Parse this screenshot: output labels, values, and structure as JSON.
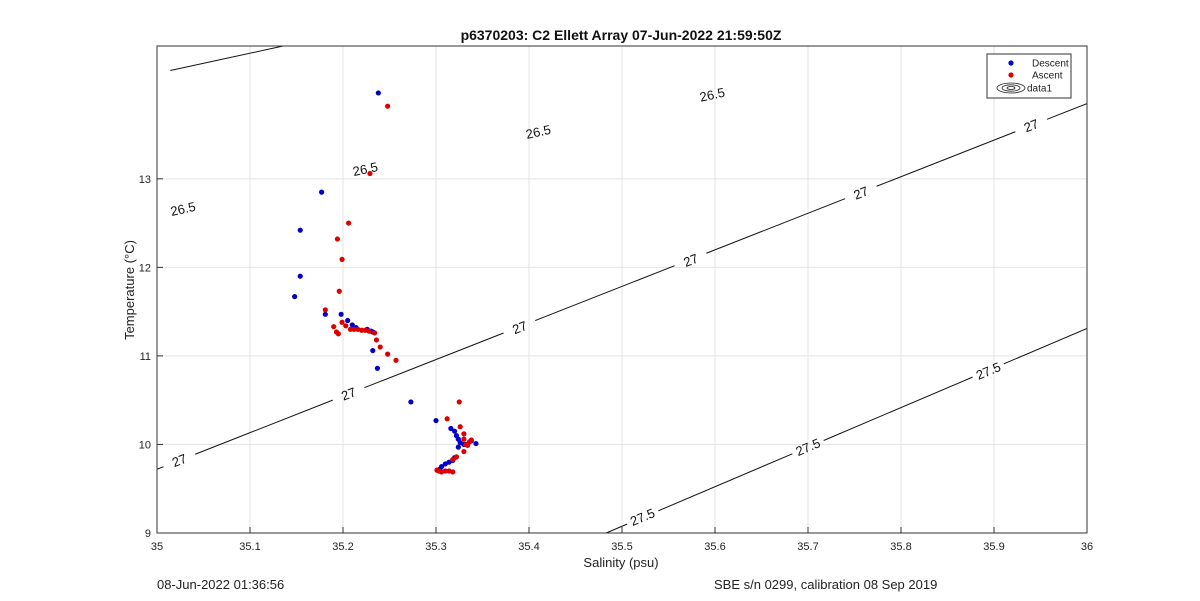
{
  "chart_data": {
    "type": "scatter",
    "title": "p6370203: C2 Ellett Array 07-Jun-2022 21:59:50Z",
    "xlabel": "Salinity (psu)",
    "ylabel": "Temperature (°C)",
    "xlim": [
      35,
      36
    ],
    "ylim": [
      9,
      14.5
    ],
    "xticks": [
      "35",
      "35.1",
      "35.2",
      "35.3",
      "35.4",
      "35.5",
      "35.6",
      "35.7",
      "35.8",
      "35.9",
      "36"
    ],
    "yticks": [
      "9",
      "10",
      "11",
      "12",
      "13"
    ],
    "grid": true,
    "legend_position": "top-right",
    "legend": [
      "Descent",
      "Ascent",
      "data1"
    ],
    "series": [
      {
        "name": "Descent",
        "color": "#0000cc",
        "points": [
          [
            35.238,
            13.97
          ],
          [
            35.177,
            12.85
          ],
          [
            35.154,
            12.42
          ],
          [
            35.154,
            11.9
          ],
          [
            35.148,
            11.67
          ],
          [
            35.181,
            11.47
          ],
          [
            35.198,
            11.47
          ],
          [
            35.205,
            11.4
          ],
          [
            35.21,
            11.35
          ],
          [
            35.214,
            11.32
          ],
          [
            35.226,
            11.3
          ],
          [
            35.23,
            11.28
          ],
          [
            35.232,
            11.27
          ],
          [
            35.232,
            11.06
          ],
          [
            35.237,
            10.86
          ],
          [
            35.273,
            10.48
          ],
          [
            35.3,
            10.27
          ],
          [
            35.316,
            10.18
          ],
          [
            35.32,
            10.15
          ],
          [
            35.322,
            10.1
          ],
          [
            35.324,
            10.06
          ],
          [
            35.326,
            10.02
          ],
          [
            35.33,
            10.0
          ],
          [
            35.334,
            10.0
          ],
          [
            35.343,
            10.01
          ],
          [
            35.338,
            10.04
          ],
          [
            35.324,
            9.97
          ],
          [
            35.32,
            9.85
          ],
          [
            35.318,
            9.82
          ],
          [
            35.314,
            9.8
          ],
          [
            35.31,
            9.78
          ],
          [
            35.306,
            9.75
          ],
          [
            35.304,
            9.72
          ]
        ]
      },
      {
        "name": "Ascent",
        "color": "#dd0000",
        "points": [
          [
            35.248,
            13.82
          ],
          [
            35.229,
            13.06
          ],
          [
            35.206,
            12.5
          ],
          [
            35.194,
            12.32
          ],
          [
            35.199,
            12.09
          ],
          [
            35.196,
            11.73
          ],
          [
            35.181,
            11.52
          ],
          [
            35.19,
            11.33
          ],
          [
            35.193,
            11.27
          ],
          [
            35.195,
            11.25
          ],
          [
            35.199,
            11.38
          ],
          [
            35.203,
            11.34
          ],
          [
            35.208,
            11.3
          ],
          [
            35.212,
            11.3
          ],
          [
            35.216,
            11.3
          ],
          [
            35.22,
            11.29
          ],
          [
            35.224,
            11.29
          ],
          [
            35.228,
            11.28
          ],
          [
            35.234,
            11.26
          ],
          [
            35.236,
            11.18
          ],
          [
            35.24,
            11.1
          ],
          [
            35.248,
            11.02
          ],
          [
            35.257,
            10.95
          ],
          [
            35.325,
            10.48
          ],
          [
            35.312,
            10.29
          ],
          [
            35.326,
            10.2
          ],
          [
            35.33,
            10.12
          ],
          [
            35.33,
            10.06
          ],
          [
            35.332,
            10.0
          ],
          [
            35.336,
            10.03
          ],
          [
            35.338,
            10.05
          ],
          [
            35.334,
            9.99
          ],
          [
            35.33,
            9.92
          ],
          [
            35.322,
            9.86
          ],
          [
            35.318,
            9.83
          ],
          [
            35.314,
            9.7
          ],
          [
            35.31,
            9.7
          ],
          [
            35.306,
            9.69
          ],
          [
            35.303,
            9.7
          ],
          [
            35.301,
            9.71
          ],
          [
            35.318,
            9.69
          ]
        ]
      }
    ],
    "contours": [
      {
        "level": "26.5",
        "line": [
          [
            35,
            14.19
          ],
          [
            35.7,
            15.79
          ]
        ],
        "labels": [
          [
            35.028,
            12.66
          ],
          [
            35.224,
            13.11
          ],
          [
            35.41,
            13.53
          ],
          [
            35.597,
            13.95
          ]
        ]
      },
      {
        "level": "27",
        "line": [
          [
            35,
            9.72
          ],
          [
            36,
            13.85
          ]
        ],
        "labels": [
          [
            35.024,
            9.82
          ],
          [
            35.206,
            10.57
          ],
          [
            35.39,
            11.32
          ],
          [
            35.574,
            12.08
          ],
          [
            35.757,
            12.84
          ],
          [
            35.94,
            13.6
          ]
        ]
      },
      {
        "level": "27.5",
        "line": [
          [
            35.483,
            9.0
          ],
          [
            36,
            11.31
          ]
        ],
        "labels": [
          [
            35.522,
            9.18
          ],
          [
            35.7,
            9.97
          ],
          [
            35.894,
            10.83
          ]
        ]
      }
    ]
  },
  "footer": {
    "timestamp": "08-Jun-2022 01:36:56",
    "calibration": "SBE s/n 0299, calibration 08 Sep 2019"
  }
}
